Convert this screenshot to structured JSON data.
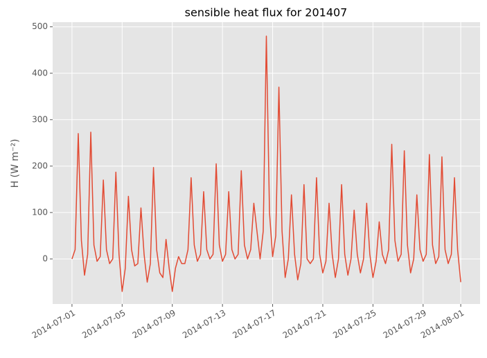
{
  "chart_data": {
    "type": "line",
    "title": "sensible heat flux for 201407",
    "ylabel": "H (W m⁻²)",
    "x": [
      "2014-07-01T00:00",
      "2014-07-01T06:00",
      "2014-07-01T12:00",
      "2014-07-01T18:00",
      "2014-07-02T00:00",
      "2014-07-02T06:00",
      "2014-07-02T12:00",
      "2014-07-02T18:00",
      "2014-07-03T00:00",
      "2014-07-03T06:00",
      "2014-07-03T12:00",
      "2014-07-03T18:00",
      "2014-07-04T00:00",
      "2014-07-04T06:00",
      "2014-07-04T12:00",
      "2014-07-04T18:00",
      "2014-07-05T00:00",
      "2014-07-05T06:00",
      "2014-07-05T12:00",
      "2014-07-05T18:00",
      "2014-07-06T00:00",
      "2014-07-06T06:00",
      "2014-07-06T12:00",
      "2014-07-06T18:00",
      "2014-07-07T00:00",
      "2014-07-07T06:00",
      "2014-07-07T12:00",
      "2014-07-07T18:00",
      "2014-07-08T00:00",
      "2014-07-08T06:00",
      "2014-07-08T12:00",
      "2014-07-08T18:00",
      "2014-07-09T00:00",
      "2014-07-09T06:00",
      "2014-07-09T12:00",
      "2014-07-09T18:00",
      "2014-07-10T00:00",
      "2014-07-10T06:00",
      "2014-07-10T12:00",
      "2014-07-10T18:00",
      "2014-07-11T00:00",
      "2014-07-11T06:00",
      "2014-07-11T12:00",
      "2014-07-11T18:00",
      "2014-07-12T00:00",
      "2014-07-12T06:00",
      "2014-07-12T12:00",
      "2014-07-12T18:00",
      "2014-07-13T00:00",
      "2014-07-13T06:00",
      "2014-07-13T12:00",
      "2014-07-13T18:00",
      "2014-07-14T00:00",
      "2014-07-14T06:00",
      "2014-07-14T12:00",
      "2014-07-14T18:00",
      "2014-07-15T00:00",
      "2014-07-15T06:00",
      "2014-07-15T12:00",
      "2014-07-15T18:00",
      "2014-07-16T00:00",
      "2014-07-16T06:00",
      "2014-07-16T12:00",
      "2014-07-16T18:00",
      "2014-07-17T00:00",
      "2014-07-17T06:00",
      "2014-07-17T12:00",
      "2014-07-17T18:00",
      "2014-07-18T00:00",
      "2014-07-18T06:00",
      "2014-07-18T12:00",
      "2014-07-18T18:00",
      "2014-07-19T00:00",
      "2014-07-19T06:00",
      "2014-07-19T12:00",
      "2014-07-19T18:00",
      "2014-07-20T00:00",
      "2014-07-20T06:00",
      "2014-07-20T12:00",
      "2014-07-20T18:00",
      "2014-07-21T00:00",
      "2014-07-21T06:00",
      "2014-07-21T12:00",
      "2014-07-21T18:00",
      "2014-07-22T00:00",
      "2014-07-22T06:00",
      "2014-07-22T12:00",
      "2014-07-22T18:00",
      "2014-07-23T00:00",
      "2014-07-23T06:00",
      "2014-07-23T12:00",
      "2014-07-23T18:00",
      "2014-07-24T00:00",
      "2014-07-24T06:00",
      "2014-07-24T12:00",
      "2014-07-24T18:00",
      "2014-07-25T00:00",
      "2014-07-25T06:00",
      "2014-07-25T12:00",
      "2014-07-25T18:00",
      "2014-07-26T00:00",
      "2014-07-26T06:00",
      "2014-07-26T12:00",
      "2014-07-26T18:00",
      "2014-07-27T00:00",
      "2014-07-27T06:00",
      "2014-07-27T12:00",
      "2014-07-27T18:00",
      "2014-07-28T00:00",
      "2014-07-28T06:00",
      "2014-07-28T12:00",
      "2014-07-28T18:00",
      "2014-07-29T00:00",
      "2014-07-29T06:00",
      "2014-07-29T12:00",
      "2014-07-29T18:00",
      "2014-07-30T00:00",
      "2014-07-30T06:00",
      "2014-07-30T12:00",
      "2014-07-30T18:00",
      "2014-07-31T00:00",
      "2014-07-31T06:00",
      "2014-07-31T12:00",
      "2014-07-31T18:00",
      "2014-08-01T00:00"
    ],
    "values": [
      0,
      20,
      270,
      40,
      -35,
      10,
      273,
      30,
      -5,
      5,
      170,
      20,
      -10,
      0,
      187,
      10,
      -70,
      -20,
      135,
      20,
      -15,
      -10,
      110,
      10,
      -50,
      -10,
      197,
      20,
      -30,
      -40,
      42,
      -20,
      -70,
      -20,
      5,
      -10,
      -10,
      20,
      175,
      30,
      -5,
      10,
      145,
      20,
      0,
      10,
      205,
      30,
      -5,
      10,
      145,
      20,
      0,
      10,
      190,
      30,
      0,
      20,
      120,
      60,
      0,
      60,
      480,
      100,
      5,
      50,
      370,
      60,
      -40,
      0,
      138,
      10,
      -45,
      -10,
      160,
      0,
      -10,
      0,
      175,
      10,
      -30,
      -5,
      120,
      10,
      -40,
      0,
      160,
      10,
      -35,
      0,
      105,
      10,
      -30,
      0,
      120,
      10,
      -40,
      -5,
      80,
      10,
      -10,
      20,
      247,
      40,
      -5,
      10,
      233,
      30,
      -30,
      0,
      138,
      20,
      -5,
      10,
      225,
      30,
      -10,
      5,
      220,
      20,
      -10,
      10,
      175,
      20,
      -50
    ],
    "color": "#e24a33",
    "xlim": [
      "2014-06-29T11:00",
      "2014-08-02T13:00"
    ],
    "xticks": [
      "2014-07-01",
      "2014-07-05",
      "2014-07-09",
      "2014-07-13",
      "2014-07-17",
      "2014-07-21",
      "2014-07-25",
      "2014-07-29",
      "2014-08-01"
    ],
    "ylim": [
      -97,
      510
    ],
    "yticks": [
      0,
      100,
      200,
      300,
      400,
      500
    ],
    "grid": true
  }
}
